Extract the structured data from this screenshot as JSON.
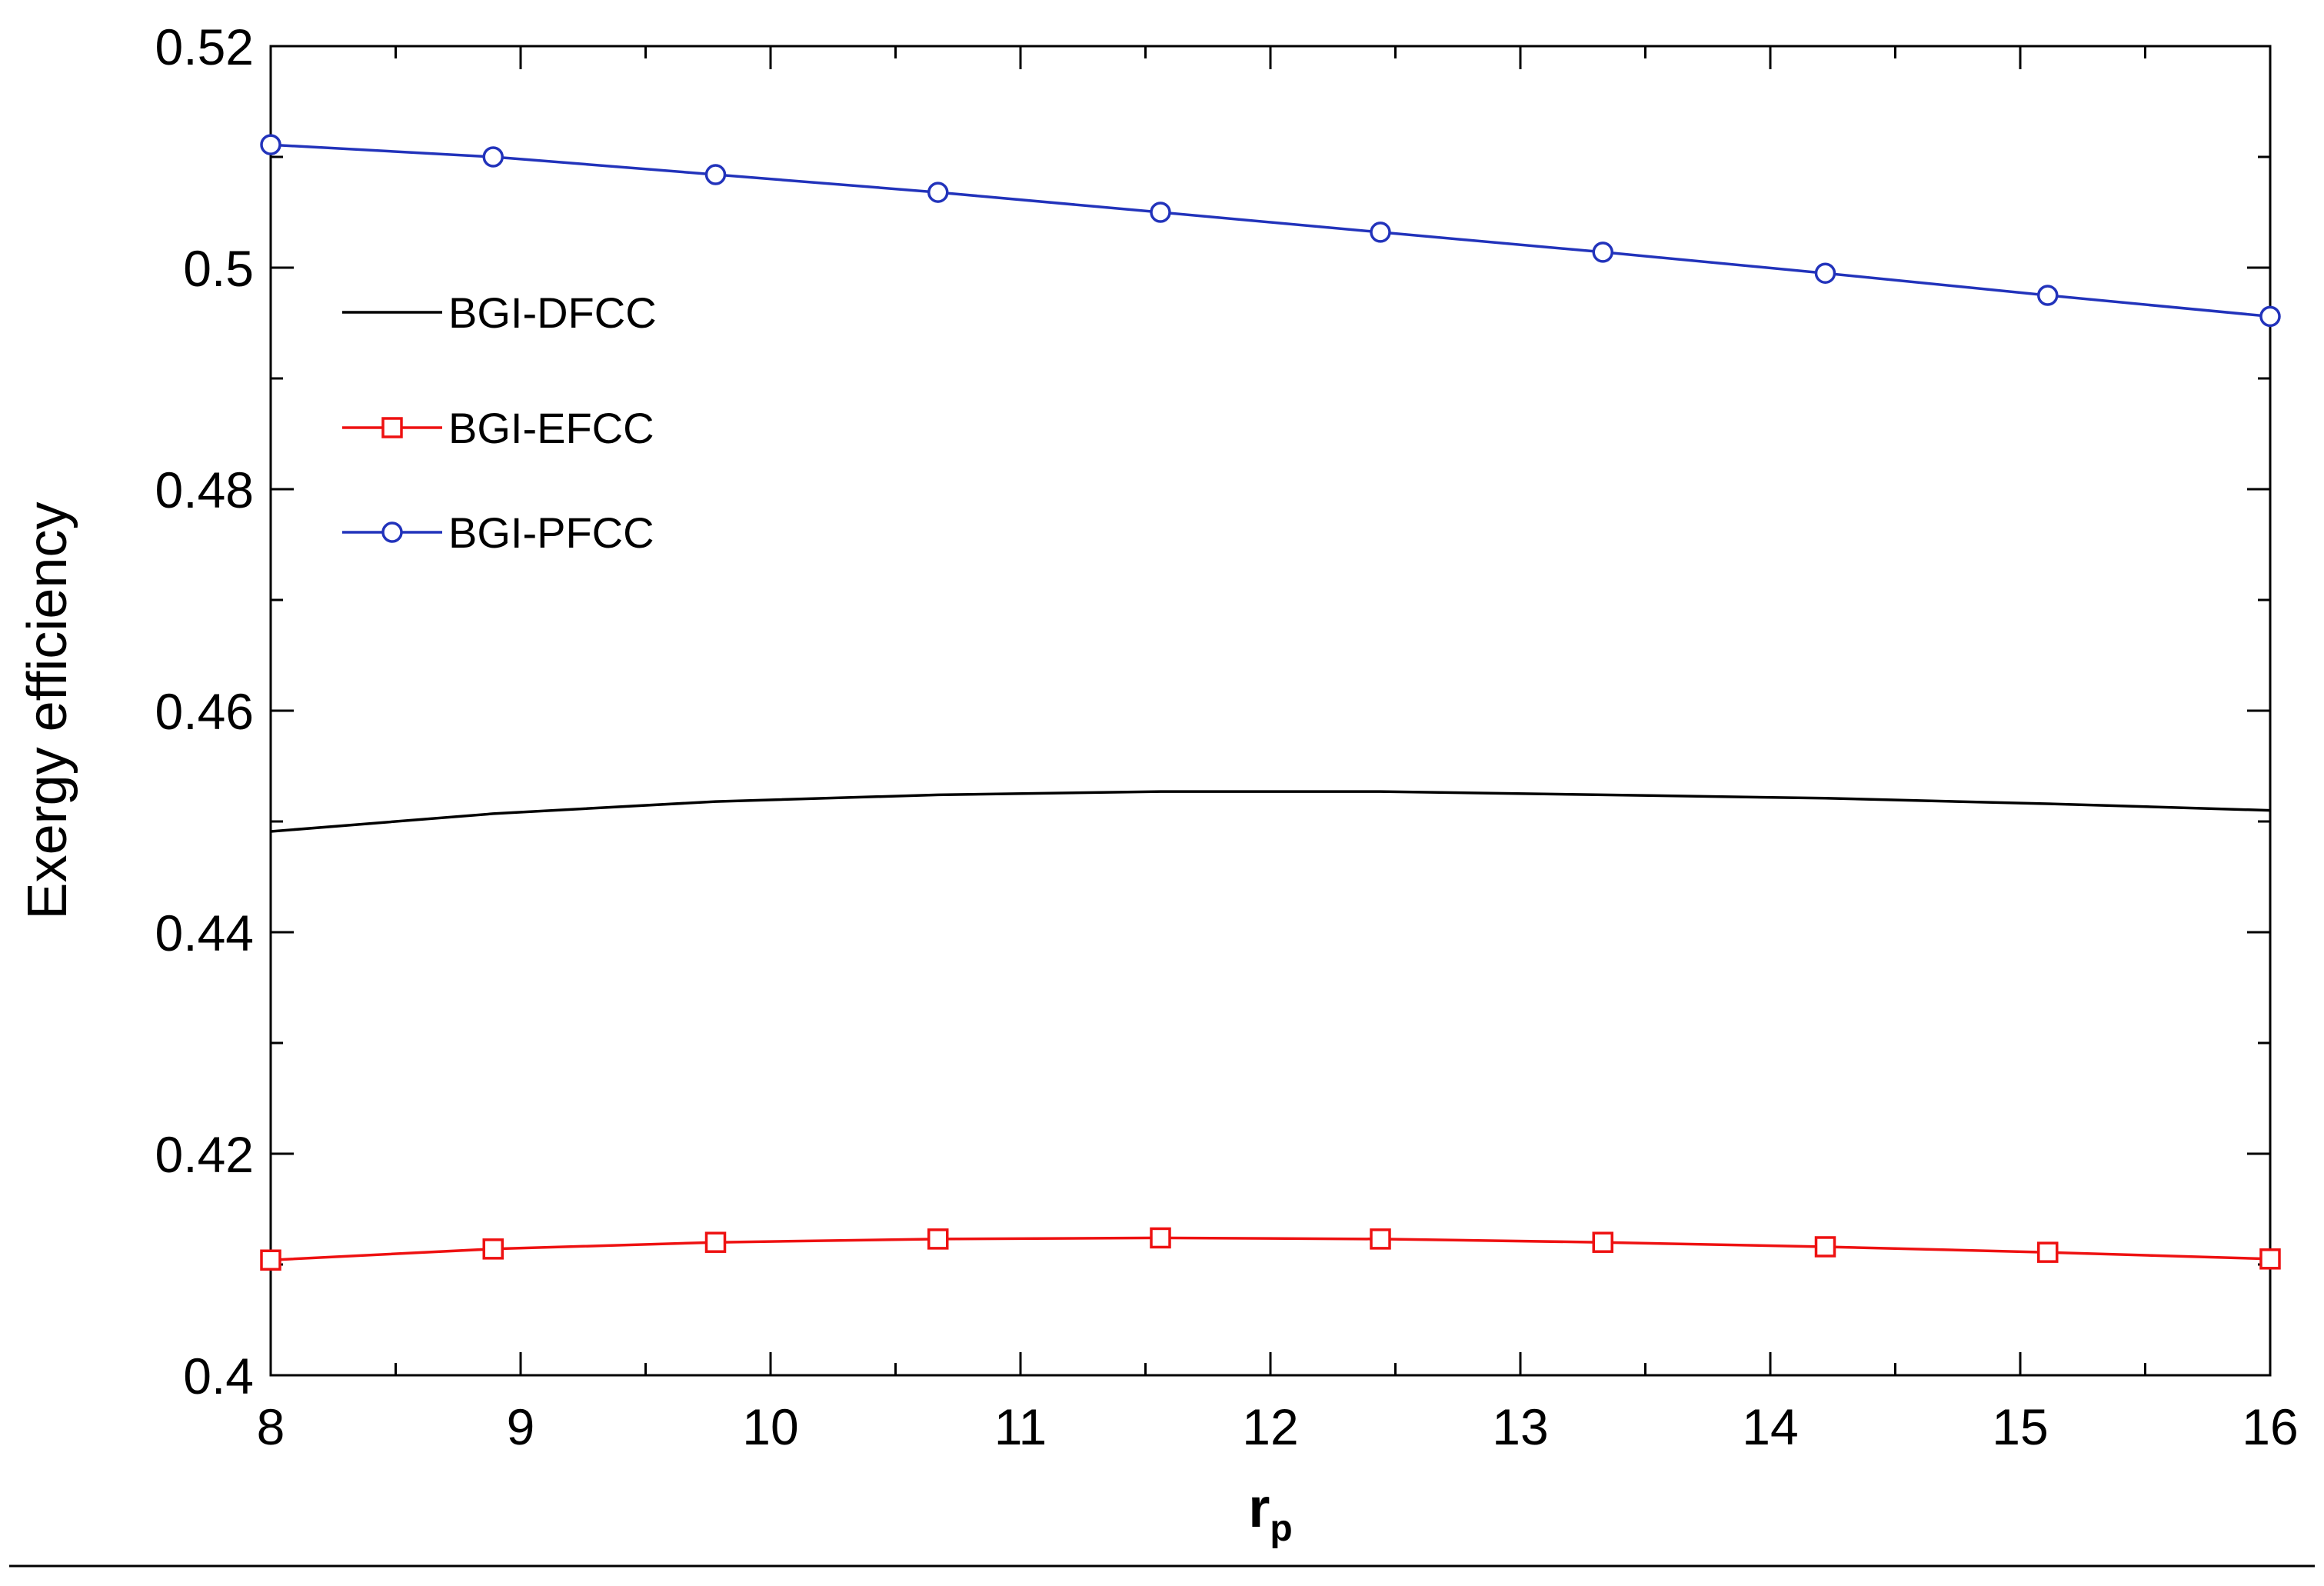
{
  "chart_data": {
    "type": "line",
    "title": "",
    "xlabel": "r",
    "xlabel_subscript": "p",
    "ylabel": "Exergy efficiency",
    "xlim": [
      8,
      16
    ],
    "ylim": [
      0.4,
      0.52
    ],
    "xticks": [
      8,
      9,
      10,
      11,
      12,
      13,
      14,
      15,
      16
    ],
    "yticks": [
      0.4,
      0.42,
      0.44,
      0.46,
      0.48,
      0.5,
      0.52
    ],
    "ytick_labels": [
      "0.4",
      "0.42",
      "0.44",
      "0.46",
      "0.48",
      "0.5",
      "0.52"
    ],
    "grid": false,
    "legend_position": "upper-left",
    "series": [
      {
        "name": "BGI-DFCC",
        "color": "#000000",
        "marker": "none",
        "x": [
          8,
          8.89,
          9.78,
          10.67,
          11.56,
          12.44,
          13.33,
          14.22,
          15.11,
          16
        ],
        "y": [
          0.4491,
          0.4507,
          0.4518,
          0.4524,
          0.4527,
          0.4527,
          0.4524,
          0.4521,
          0.4516,
          0.451
        ]
      },
      {
        "name": "BGI-EFCC",
        "color": "#ee1111",
        "marker": "square",
        "x": [
          8,
          8.89,
          9.78,
          10.67,
          11.56,
          12.44,
          13.33,
          14.22,
          15.11,
          16
        ],
        "y": [
          0.4104,
          0.4114,
          0.412,
          0.4123,
          0.4124,
          0.4123,
          0.412,
          0.4116,
          0.4111,
          0.4105
        ]
      },
      {
        "name": "BGI-PFCC",
        "color": "#2233bb",
        "marker": "circle",
        "x": [
          8,
          8.89,
          9.78,
          10.67,
          11.56,
          12.44,
          13.33,
          14.22,
          15.11,
          16
        ],
        "y": [
          0.5111,
          0.51,
          0.5084,
          0.5068,
          0.505,
          0.5032,
          0.5014,
          0.4995,
          0.4975,
          0.4956
        ]
      }
    ]
  }
}
